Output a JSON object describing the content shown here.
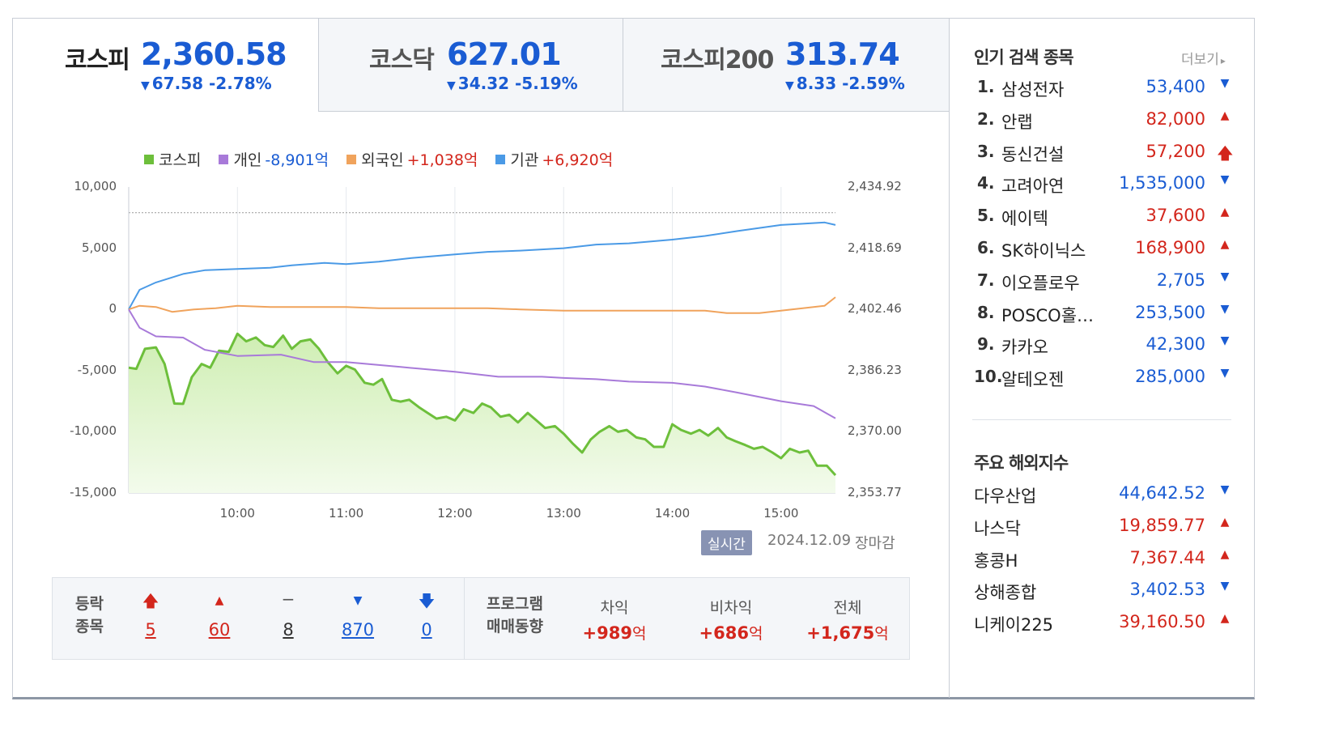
{
  "tabs": [
    {
      "name": "코스피",
      "value": "2,360.58",
      "change": "67.58 -2.78%",
      "arrow": "▼",
      "active": true
    },
    {
      "name": "코스닥",
      "value": "627.01",
      "change": "34.32 -5.19%",
      "arrow": "▼",
      "active": false
    },
    {
      "name": "코스피200",
      "value": "313.74",
      "change": "8.33 -2.59%",
      "arrow": "▼",
      "active": false
    }
  ],
  "legend": [
    {
      "label": "코스피",
      "value": "",
      "color": "#6dbf3b"
    },
    {
      "label": "개인",
      "value": "-8,901억",
      "color": "#a87ad9"
    },
    {
      "label": "외국인",
      "value": "+1,038억",
      "color": "#f0a35c"
    },
    {
      "label": "기관",
      "value": "+6,920억",
      "color": "#4a9ae6"
    }
  ],
  "chart_data": {
    "type": "line",
    "y_left_ticks": [
      "10,000",
      "5,000",
      "0",
      "-5,000",
      "-10,000",
      "-15,000"
    ],
    "y_left_range": [
      -15000,
      10000
    ],
    "y_right_ticks": [
      "2,434.92",
      "2,418.69",
      "2,402.46",
      "2,386.23",
      "2,370.00",
      "2,353.77"
    ],
    "y_right_range": [
      2353.77,
      2434.92
    ],
    "x_ticks": [
      "10:00",
      "11:00",
      "12:00",
      "13:00",
      "14:00",
      "15:00"
    ],
    "x_range": [
      9.0,
      15.5
    ],
    "reference_line_left_value": 7900,
    "series": [
      {
        "name": "기관",
        "axis": "left",
        "color": "#4a9ae6",
        "points": [
          [
            9.0,
            0
          ],
          [
            9.1,
            1600
          ],
          [
            9.25,
            2200
          ],
          [
            9.5,
            2900
          ],
          [
            9.7,
            3200
          ],
          [
            10.0,
            3300
          ],
          [
            10.3,
            3400
          ],
          [
            10.5,
            3600
          ],
          [
            10.8,
            3800
          ],
          [
            11.0,
            3700
          ],
          [
            11.3,
            3900
          ],
          [
            11.6,
            4200
          ],
          [
            12.0,
            4500
          ],
          [
            12.3,
            4700
          ],
          [
            12.6,
            4800
          ],
          [
            13.0,
            5000
          ],
          [
            13.3,
            5300
          ],
          [
            13.6,
            5400
          ],
          [
            14.0,
            5700
          ],
          [
            14.3,
            6000
          ],
          [
            14.6,
            6400
          ],
          [
            15.0,
            6900
          ],
          [
            15.2,
            7000
          ],
          [
            15.4,
            7100
          ],
          [
            15.5,
            6900
          ]
        ]
      },
      {
        "name": "외국인",
        "axis": "left",
        "color": "#f0a35c",
        "points": [
          [
            9.0,
            0
          ],
          [
            9.1,
            300
          ],
          [
            9.25,
            200
          ],
          [
            9.4,
            -200
          ],
          [
            9.6,
            0
          ],
          [
            9.8,
            100
          ],
          [
            10.0,
            300
          ],
          [
            10.3,
            200
          ],
          [
            10.6,
            200
          ],
          [
            11.0,
            200
          ],
          [
            11.3,
            100
          ],
          [
            11.6,
            100
          ],
          [
            12.0,
            100
          ],
          [
            12.3,
            100
          ],
          [
            12.6,
            0
          ],
          [
            13.0,
            -100
          ],
          [
            13.3,
            -100
          ],
          [
            13.6,
            -100
          ],
          [
            14.0,
            -100
          ],
          [
            14.3,
            -100
          ],
          [
            14.5,
            -300
          ],
          [
            14.8,
            -300
          ],
          [
            15.0,
            -100
          ],
          [
            15.2,
            100
          ],
          [
            15.4,
            300
          ],
          [
            15.5,
            1000
          ]
        ]
      },
      {
        "name": "개인",
        "axis": "left",
        "color": "#a87ad9",
        "points": [
          [
            9.0,
            0
          ],
          [
            9.1,
            -1500
          ],
          [
            9.25,
            -2200
          ],
          [
            9.5,
            -2300
          ],
          [
            9.7,
            -3300
          ],
          [
            10.0,
            -3800
          ],
          [
            10.4,
            -3700
          ],
          [
            10.7,
            -4300
          ],
          [
            11.0,
            -4300
          ],
          [
            11.5,
            -4700
          ],
          [
            12.0,
            -5100
          ],
          [
            12.4,
            -5500
          ],
          [
            12.8,
            -5500
          ],
          [
            13.0,
            -5600
          ],
          [
            13.3,
            -5700
          ],
          [
            13.6,
            -5900
          ],
          [
            14.0,
            -6000
          ],
          [
            14.3,
            -6300
          ],
          [
            14.6,
            -6800
          ],
          [
            15.0,
            -7500
          ],
          [
            15.3,
            -7900
          ],
          [
            15.4,
            -8400
          ],
          [
            15.5,
            -8900
          ]
        ]
      },
      {
        "name": "코스피",
        "axis": "right",
        "color": "#6dbf3b",
        "fill": "#dff3cc",
        "points": [
          [
            9.0,
            2387.0
          ],
          [
            9.07,
            2386.7
          ],
          [
            9.15,
            2392.0
          ],
          [
            9.25,
            2392.4
          ],
          [
            9.33,
            2388.0
          ],
          [
            9.42,
            2377.5
          ],
          [
            9.5,
            2377.4
          ],
          [
            9.58,
            2384.5
          ],
          [
            9.67,
            2388.0
          ],
          [
            9.75,
            2387.0
          ],
          [
            9.83,
            2391.5
          ],
          [
            9.92,
            2391.2
          ],
          [
            10.0,
            2396.0
          ],
          [
            10.08,
            2394.0
          ],
          [
            10.17,
            2395.0
          ],
          [
            10.25,
            2393.0
          ],
          [
            10.33,
            2392.5
          ],
          [
            10.42,
            2395.5
          ],
          [
            10.5,
            2392.0
          ],
          [
            10.58,
            2394.0
          ],
          [
            10.67,
            2394.5
          ],
          [
            10.75,
            2392.0
          ],
          [
            10.83,
            2388.5
          ],
          [
            10.92,
            2385.5
          ],
          [
            11.0,
            2387.5
          ],
          [
            11.08,
            2386.5
          ],
          [
            11.17,
            2383.0
          ],
          [
            11.25,
            2382.5
          ],
          [
            11.33,
            2384.0
          ],
          [
            11.42,
            2378.5
          ],
          [
            11.5,
            2378.0
          ],
          [
            11.58,
            2378.5
          ],
          [
            11.67,
            2376.5
          ],
          [
            11.75,
            2375.0
          ],
          [
            11.83,
            2373.5
          ],
          [
            11.92,
            2374.0
          ],
          [
            12.0,
            2373.0
          ],
          [
            12.08,
            2376.0
          ],
          [
            12.17,
            2375.0
          ],
          [
            12.25,
            2377.5
          ],
          [
            12.33,
            2376.5
          ],
          [
            12.42,
            2374.0
          ],
          [
            12.5,
            2374.5
          ],
          [
            12.58,
            2372.5
          ],
          [
            12.67,
            2375.0
          ],
          [
            12.75,
            2373.0
          ],
          [
            12.83,
            2371.0
          ],
          [
            12.92,
            2371.5
          ],
          [
            13.0,
            2369.5
          ],
          [
            13.08,
            2367.0
          ],
          [
            13.17,
            2364.5
          ],
          [
            13.25,
            2368.0
          ],
          [
            13.33,
            2370.0
          ],
          [
            13.42,
            2371.5
          ],
          [
            13.5,
            2370.0
          ],
          [
            13.58,
            2370.5
          ],
          [
            13.67,
            2368.5
          ],
          [
            13.75,
            2368.0
          ],
          [
            13.83,
            2366.0
          ],
          [
            13.92,
            2366.0
          ],
          [
            14.0,
            2372.0
          ],
          [
            14.08,
            2370.5
          ],
          [
            14.17,
            2369.5
          ],
          [
            14.25,
            2370.5
          ],
          [
            14.33,
            2369.0
          ],
          [
            14.42,
            2371.0
          ],
          [
            14.5,
            2368.5
          ],
          [
            14.58,
            2367.5
          ],
          [
            14.67,
            2366.5
          ],
          [
            14.75,
            2365.5
          ],
          [
            14.83,
            2366.0
          ],
          [
            14.92,
            2364.5
          ],
          [
            15.0,
            2363.0
          ],
          [
            15.08,
            2365.5
          ],
          [
            15.17,
            2364.5
          ],
          [
            15.25,
            2365.0
          ],
          [
            15.33,
            2361.0
          ],
          [
            15.42,
            2361.0
          ],
          [
            15.5,
            2358.5
          ]
        ]
      }
    ]
  },
  "realtime": {
    "badge": "실시간",
    "date": "2024.12.09",
    "status": "장마감"
  },
  "stats": {
    "label_line1": "등락",
    "label_line2": "종목",
    "items": [
      {
        "icon": "🡅",
        "value": "5",
        "cls": "up"
      },
      {
        "icon": "▲",
        "value": "60",
        "cls": "up"
      },
      {
        "icon": "−",
        "value": "8",
        "cls": "flat"
      },
      {
        "icon": "▼",
        "value": "870",
        "cls": "dn"
      },
      {
        "icon": "🡇",
        "value": "0",
        "cls": "dn"
      }
    ],
    "program_line1": "프로그램",
    "program_line2": "매매동향",
    "program": [
      {
        "head": "차익",
        "value": "+989",
        "unit": "억"
      },
      {
        "head": "비차익",
        "value": "+686",
        "unit": "억"
      },
      {
        "head": "전체",
        "value": "+1,675",
        "unit": "억"
      }
    ]
  },
  "popular": {
    "title": "인기 검색 종목",
    "more": "더보기",
    "items": [
      {
        "rank": "1.",
        "name": "삼성전자",
        "price": "53,400",
        "dir": "dn",
        "arrow": "▼"
      },
      {
        "rank": "2.",
        "name": "안랩",
        "price": "82,000",
        "dir": "up",
        "arrow": "▲"
      },
      {
        "rank": "3.",
        "name": "동신건설",
        "price": "57,200",
        "dir": "up",
        "arrow": "🡅"
      },
      {
        "rank": "4.",
        "name": "고려아연",
        "price": "1,535,000",
        "dir": "dn",
        "arrow": "▼"
      },
      {
        "rank": "5.",
        "name": "에이텍",
        "price": "37,600",
        "dir": "up",
        "arrow": "▲"
      },
      {
        "rank": "6.",
        "name": "SK하이닉스",
        "price": "168,900",
        "dir": "up",
        "arrow": "▲"
      },
      {
        "rank": "7.",
        "name": "이오플로우",
        "price": "2,705",
        "dir": "dn",
        "arrow": "▼"
      },
      {
        "rank": "8.",
        "name": "POSCO홀…",
        "price": "253,500",
        "dir": "dn",
        "arrow": "▼"
      },
      {
        "rank": "9.",
        "name": "카카오",
        "price": "42,300",
        "dir": "dn",
        "arrow": "▼"
      },
      {
        "rank": "10.",
        "name": "알테오젠",
        "price": "285,000",
        "dir": "dn",
        "arrow": "▼"
      }
    ]
  },
  "overseas": {
    "title": "주요 해외지수",
    "items": [
      {
        "name": "다우산업",
        "value": "44,642.52",
        "dir": "dn",
        "arrow": "▼"
      },
      {
        "name": "나스닥",
        "value": "19,859.77",
        "dir": "up",
        "arrow": "▲"
      },
      {
        "name": "홍콩H",
        "value": "7,367.44",
        "dir": "up",
        "arrow": "▲"
      },
      {
        "name": "상해종합",
        "value": "3,402.53",
        "dir": "dn",
        "arrow": "▼"
      },
      {
        "name": "니케이225",
        "value": "39,160.50",
        "dir": "up",
        "arrow": "▲"
      }
    ]
  }
}
